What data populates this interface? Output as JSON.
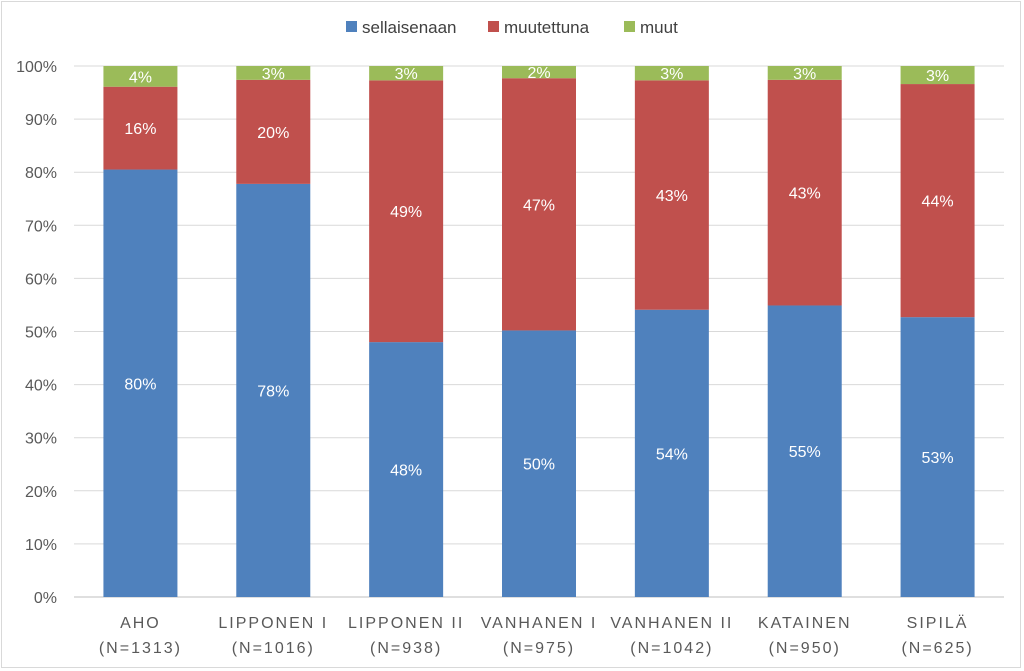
{
  "chart_data": {
    "type": "bar",
    "stacked": true,
    "title": "",
    "xlabel": "",
    "ylabel": "",
    "ylim": [
      0,
      100
    ],
    "y_ticks": [
      "0%",
      "10%",
      "20%",
      "30%",
      "40%",
      "50%",
      "60%",
      "70%",
      "80%",
      "90%",
      "100%"
    ],
    "grid": true,
    "legend_position": "top",
    "categories": [
      {
        "line1": "AHO",
        "line2": "(N=1313)"
      },
      {
        "line1": "LIPPONEN I",
        "line2": "(N=1016)"
      },
      {
        "line1": "LIPPONEN II",
        "line2": "(N=938)"
      },
      {
        "line1": "VANHANEN I",
        "line2": "(N=975)"
      },
      {
        "line1": "VANHANEN II",
        "line2": "(N=1042)"
      },
      {
        "line1": "KATAINEN",
        "line2": "(N=950)"
      },
      {
        "line1": "SIPILÄ",
        "line2": "(N=625)"
      }
    ],
    "series": [
      {
        "name": "sellaisenaan",
        "color": "#4f81bd",
        "values": [
          80.5,
          77.8,
          48,
          50.2,
          54.1,
          54.9,
          52.7
        ],
        "labels": [
          "80%",
          "78%",
          "48%",
          "50%",
          "54%",
          "55%",
          "53%"
        ]
      },
      {
        "name": "muutettuna",
        "color": "#c0504d",
        "values": [
          15.6,
          19.6,
          49.3,
          47.5,
          43.2,
          42.5,
          43.9
        ],
        "labels": [
          "16%",
          "20%",
          "49%",
          "47%",
          "43%",
          "43%",
          "44%"
        ]
      },
      {
        "name": "muut",
        "color": "#9bbb59",
        "values": [
          3.9,
          2.6,
          2.7,
          2.3,
          2.7,
          2.6,
          3.4
        ],
        "labels": [
          "4%",
          "3%",
          "3%",
          "2%",
          "3%",
          "3%",
          "3%"
        ]
      }
    ]
  }
}
